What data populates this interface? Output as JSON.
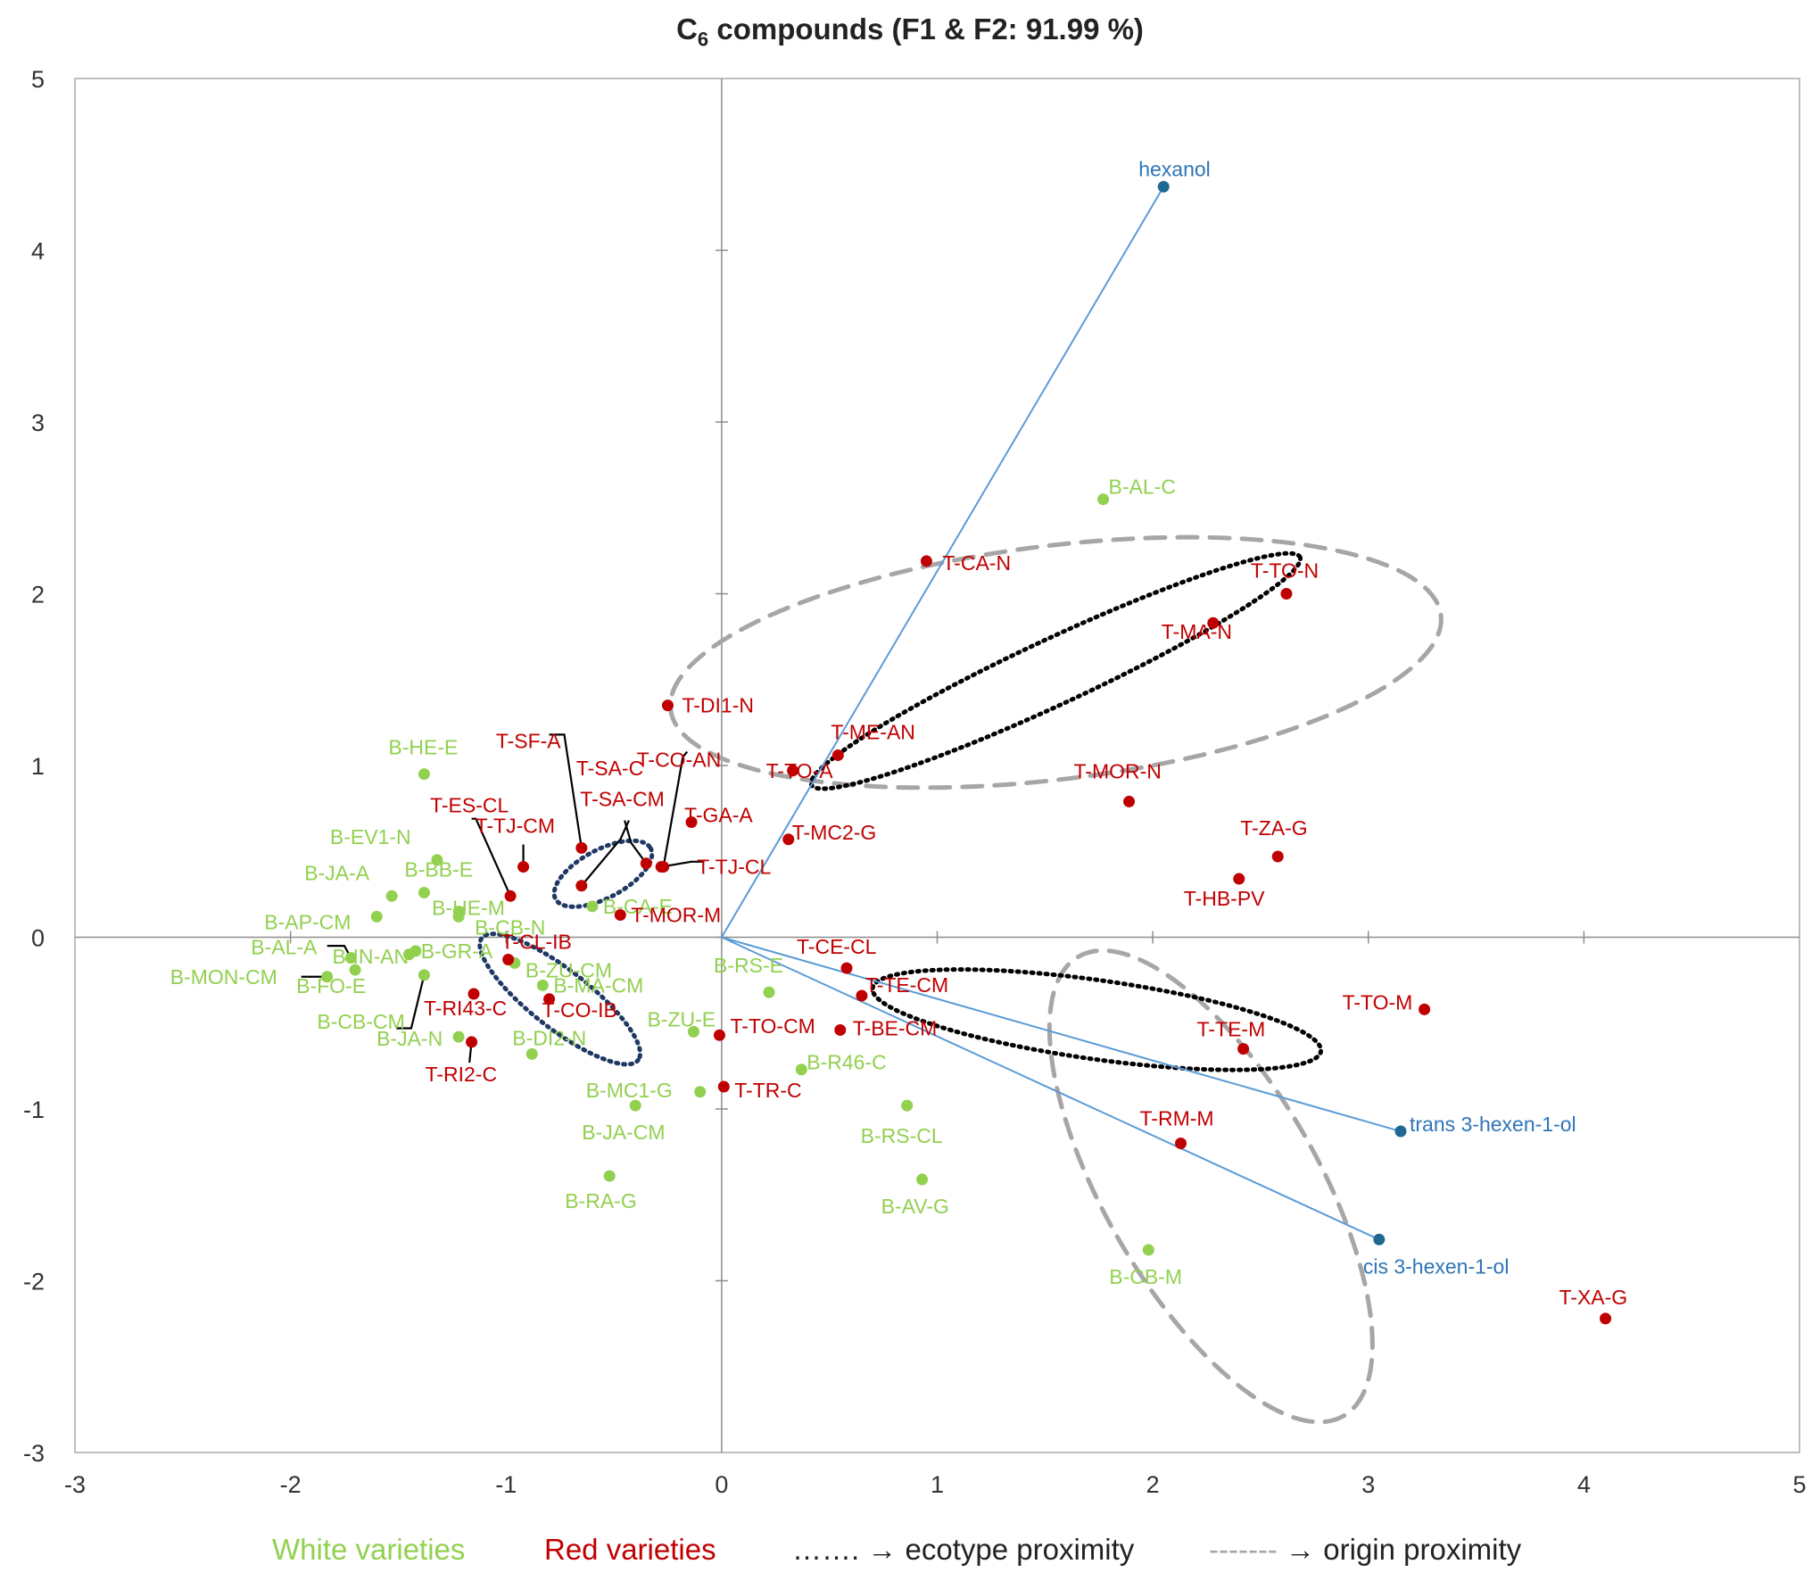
{
  "chart_data": {
    "type": "scatter",
    "title": {
      "pre": "C",
      "sub": "6",
      "post": " compounds (F1 & F2: 91.99 %)"
    },
    "xlim": [
      -3,
      5
    ],
    "ylim": [
      -3,
      5
    ],
    "x_ticks": [
      -3,
      -2,
      -1,
      0,
      1,
      2,
      3,
      4,
      5
    ],
    "y_ticks": [
      -3,
      -2,
      -1,
      0,
      1,
      2,
      3,
      4,
      5
    ],
    "grid": false,
    "legend_position": "bottom",
    "colors": {
      "white": "#92d050",
      "red": "#c00000",
      "vector": "#2e75b6",
      "vector_line": "#5b9bd5",
      "ecotype": "#000000",
      "origin": "#a6a6a6"
    },
    "legend": {
      "white_label": "White varieties",
      "red_label": "Red varieties",
      "ecotype_symbol": "…….",
      "ecotype_text": "→ ecotype proximity",
      "origin_symbol": "-------",
      "origin_text": "→ origin proximity"
    },
    "vectors": [
      {
        "name": "hexanol",
        "x": 2.05,
        "y": 4.37
      },
      {
        "name": "trans 3-hexen-1-ol",
        "x": 3.15,
        "y": -1.13
      },
      {
        "name": "cis 3-hexen-1-ol",
        "x": 3.05,
        "y": -1.76
      }
    ],
    "series": [
      {
        "name": "White varieties",
        "points": [
          {
            "label": "B-AL-C",
            "x": 1.77,
            "y": 2.55
          },
          {
            "label": "B-HE-E",
            "x": -1.38,
            "y": 0.95
          },
          {
            "label": "B-EV1-N",
            "x": -1.32,
            "y": 0.45
          },
          {
            "label": "B-JA-A",
            "x": -1.53,
            "y": 0.24
          },
          {
            "label": "B-BB-E",
            "x": -1.38,
            "y": 0.26
          },
          {
            "label": "B-HE-M",
            "x": -1.22,
            "y": 0.15
          },
          {
            "label": "B-AP-CM",
            "x": -1.6,
            "y": 0.12
          },
          {
            "label": "B-CB-N",
            "x": -1.22,
            "y": 0.12
          },
          {
            "label": "B-CA-E",
            "x": -0.6,
            "y": 0.18
          },
          {
            "label": "B-IN-AN",
            "x": -1.45,
            "y": -0.1
          },
          {
            "label": "B-AL-A",
            "x": -1.72,
            "y": -0.12
          },
          {
            "label": "B-ZU-CM",
            "x": -0.96,
            "y": -0.15
          },
          {
            "label": "B-GR-A",
            "x": -1.42,
            "y": -0.08
          },
          {
            "label": "B-MON-CM",
            "x": -1.83,
            "y": -0.23
          },
          {
            "label": "B-FO-E",
            "x": -1.7,
            "y": -0.19
          },
          {
            "label": "B-MA-CM",
            "x": -0.83,
            "y": -0.28
          },
          {
            "label": "B-RS-E",
            "x": 0.22,
            "y": -0.32
          },
          {
            "label": "B-CB-CM",
            "x": -1.38,
            "y": -0.22
          },
          {
            "label": "B-ZU-E",
            "x": -0.13,
            "y": -0.55
          },
          {
            "label": "B-JA-N",
            "x": -1.22,
            "y": -0.58
          },
          {
            "label": "B-DI2-N",
            "x": -0.88,
            "y": -0.68
          },
          {
            "label": "B-R46-C",
            "x": 0.37,
            "y": -0.77
          },
          {
            "label": "B-MC1-G",
            "x": -0.1,
            "y": -0.9
          },
          {
            "label": "B-JA-CM",
            "x": -0.4,
            "y": -0.98
          },
          {
            "label": "B-RS-CL",
            "x": 0.86,
            "y": -0.98
          },
          {
            "label": "B-RA-G",
            "x": -0.52,
            "y": -1.39
          },
          {
            "label": "B-AV-G",
            "x": 0.93,
            "y": -1.41
          },
          {
            "label": "B-CB-M",
            "x": 1.98,
            "y": -1.82
          }
        ]
      },
      {
        "name": "Red varieties",
        "points": [
          {
            "label": "T-CA-N",
            "x": 0.95,
            "y": 2.19
          },
          {
            "label": "T-TO-N",
            "x": 2.62,
            "y": 2.0
          },
          {
            "label": "T-MA-N",
            "x": 2.28,
            "y": 1.83
          },
          {
            "label": "T-DI1-N",
            "x": -0.25,
            "y": 1.35
          },
          {
            "label": "T-ME-AN",
            "x": 0.54,
            "y": 1.06
          },
          {
            "label": "T-TO-A",
            "x": 0.33,
            "y": 0.97
          },
          {
            "label": "T-MOR-N",
            "x": 1.89,
            "y": 0.79
          },
          {
            "label": "T-GA-A",
            "x": -0.14,
            "y": 0.67
          },
          {
            "label": "T-MC2-G",
            "x": 0.31,
            "y": 0.57
          },
          {
            "label": "T-SF-A",
            "x": -0.65,
            "y": 0.52
          },
          {
            "label": "T-ZA-G",
            "x": 2.58,
            "y": 0.47
          },
          {
            "label": "T-SA-CM",
            "x": -0.35,
            "y": 0.43
          },
          {
            "label": "T-TJ-CL",
            "x": -0.28,
            "y": 0.41
          },
          {
            "label": "T-TJ-CM",
            "x": -0.92,
            "y": 0.41
          },
          {
            "label": "T-HB-PV",
            "x": 2.4,
            "y": 0.34
          },
          {
            "label": "T-SA-C",
            "x": -0.65,
            "y": 0.3
          },
          {
            "label": "T-ES-CL",
            "x": -0.98,
            "y": 0.24
          },
          {
            "label": "T-MOR-M",
            "x": -0.47,
            "y": 0.13
          },
          {
            "label": "T-CL-IB",
            "x": -0.99,
            "y": -0.13
          },
          {
            "label": "T-CE-CL",
            "x": 0.58,
            "y": -0.18
          },
          {
            "label": "T-CO-IB",
            "x": -0.8,
            "y": -0.36
          },
          {
            "label": "T-RI43-C",
            "x": -1.15,
            "y": -0.33
          },
          {
            "label": "T-TE-CM",
            "x": 0.65,
            "y": -0.34
          },
          {
            "label": "T-TO-M",
            "x": 3.26,
            "y": -0.42
          },
          {
            "label": "T-BE-CM",
            "x": 0.55,
            "y": -0.54
          },
          {
            "label": "T-TO-CM",
            "x": -0.01,
            "y": -0.57
          },
          {
            "label": "T-RI2-C",
            "x": -1.16,
            "y": -0.61
          },
          {
            "label": "T-TE-M",
            "x": 2.42,
            "y": -0.65
          },
          {
            "label": "T-TR-C",
            "x": 0.01,
            "y": -0.87
          },
          {
            "label": "T-RM-M",
            "x": 2.13,
            "y": -1.2
          },
          {
            "label": "T-XA-G",
            "x": 4.1,
            "y": -2.22
          },
          {
            "label": "T-CO-AN",
            "x": -0.27,
            "y": 0.41
          }
        ]
      }
    ]
  }
}
